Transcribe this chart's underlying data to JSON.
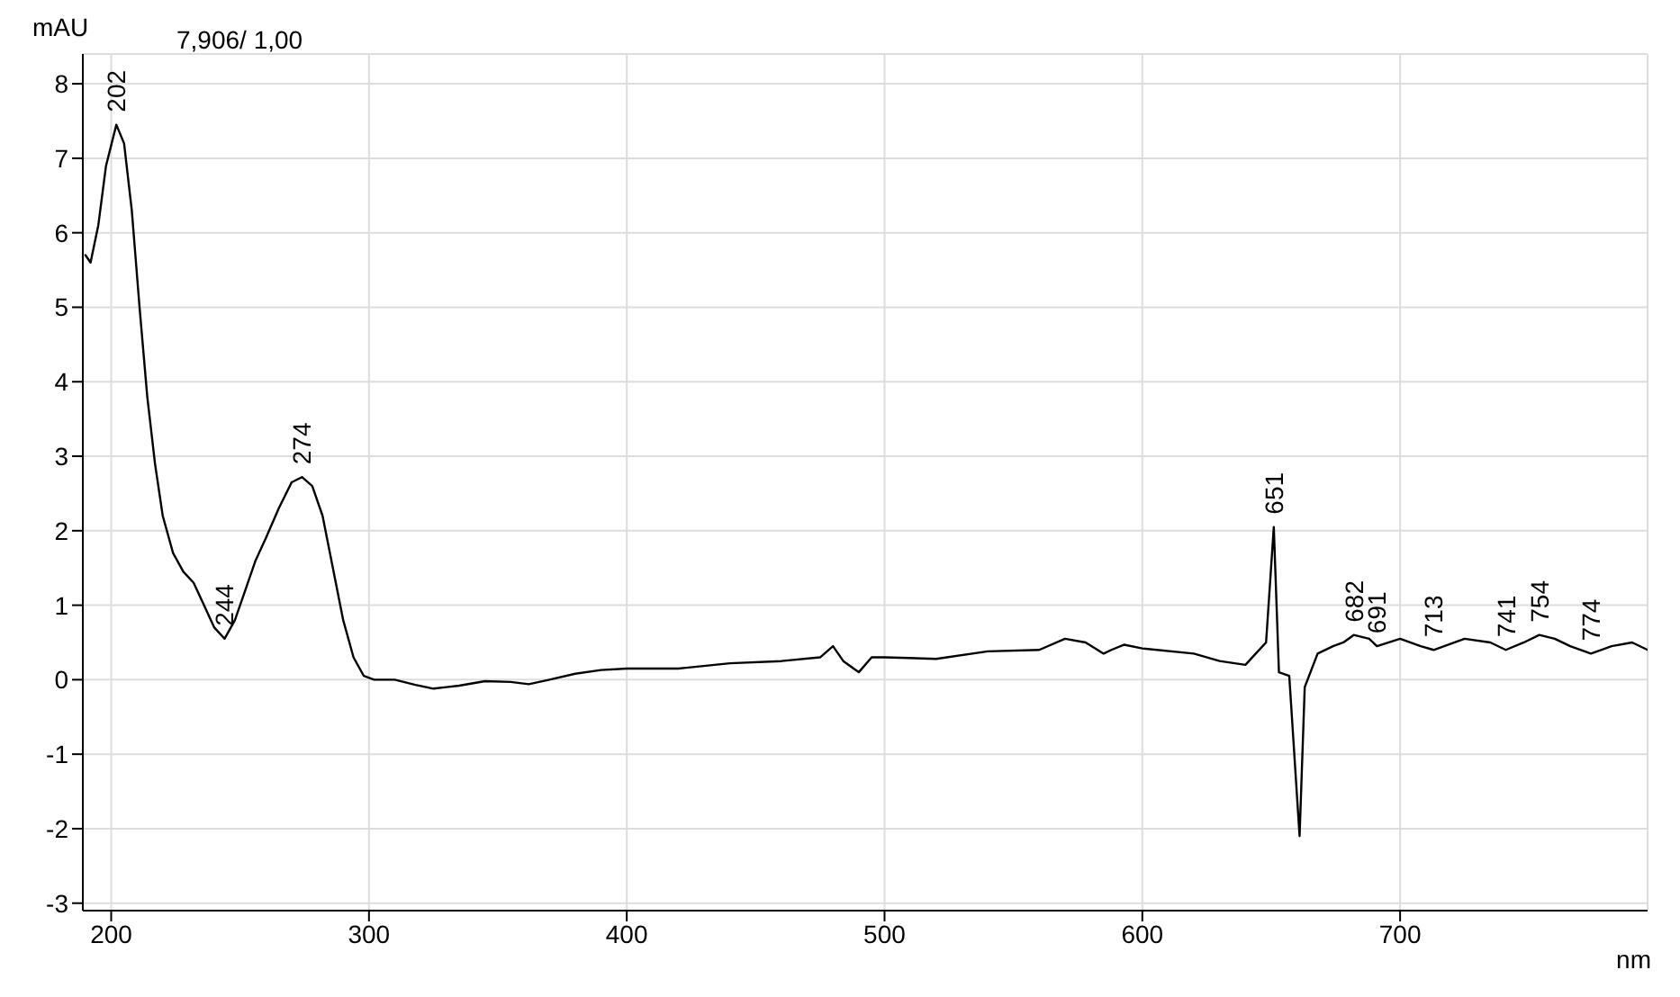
{
  "chart_data": {
    "type": "line",
    "ylabel": "mAU",
    "xlabel": "nm",
    "xlim": [
      189,
      796
    ],
    "ylim": [
      -3.1,
      8.4
    ],
    "xticks": [
      200,
      300,
      400,
      500,
      600,
      700
    ],
    "yticks": [
      -3,
      -2,
      -1,
      0,
      1,
      2,
      3,
      4,
      5,
      6,
      7,
      8
    ],
    "grid": true,
    "marker": "none",
    "line_style": "solid",
    "annotations": [
      "7,906/ 1,00",
      {
        "text": "202",
        "x": 202,
        "y": 7.45
      },
      {
        "text": "244",
        "x": 244,
        "y": 0.55
      },
      {
        "text": "274",
        "x": 274,
        "y": 2.72
      },
      {
        "text": "651",
        "x": 651,
        "y": 2.05
      },
      {
        "text": "682",
        "x": 682,
        "y": 0.6
      },
      {
        "text": "691",
        "x": 691,
        "y": 0.45
      },
      {
        "text": "713",
        "x": 713,
        "y": 0.4
      },
      {
        "text": "741",
        "x": 741,
        "y": 0.4
      },
      {
        "text": "754",
        "x": 754,
        "y": 0.6
      },
      {
        "text": "774",
        "x": 774,
        "y": 0.35
      }
    ],
    "series": [
      {
        "color": "#000000",
        "x": [
          190,
          192,
          195,
          198,
          202,
          205,
          208,
          211,
          214,
          217,
          220,
          224,
          228,
          232,
          236,
          240,
          244,
          248,
          252,
          256,
          260,
          265,
          270,
          274,
          278,
          282,
          286,
          290,
          294,
          298,
          302,
          310,
          318,
          325,
          330,
          335,
          345,
          355,
          362,
          370,
          380,
          390,
          400,
          420,
          440,
          460,
          475,
          480,
          484,
          490,
          495,
          500,
          520,
          540,
          560,
          570,
          578,
          585,
          588,
          593,
          600,
          620,
          630,
          640,
          644,
          648,
          651,
          653,
          657,
          661,
          663,
          668,
          674,
          678,
          682,
          688,
          691,
          700,
          708,
          713,
          725,
          735,
          741,
          748,
          754,
          760,
          766,
          774,
          782,
          790,
          796
        ],
        "values": [
          5.7,
          5.6,
          6.1,
          6.9,
          7.45,
          7.2,
          6.3,
          5.0,
          3.8,
          2.9,
          2.2,
          1.7,
          1.45,
          1.3,
          1.0,
          0.7,
          0.55,
          0.8,
          1.2,
          1.6,
          1.9,
          2.3,
          2.65,
          2.72,
          2.6,
          2.2,
          1.5,
          0.8,
          0.3,
          0.05,
          0.0,
          0.0,
          -0.07,
          -0.12,
          -0.1,
          -0.08,
          -0.02,
          -0.03,
          -0.06,
          0.0,
          0.08,
          0.13,
          0.15,
          0.15,
          0.22,
          0.25,
          0.3,
          0.45,
          0.25,
          0.1,
          0.3,
          0.3,
          0.28,
          0.38,
          0.4,
          0.55,
          0.5,
          0.35,
          0.4,
          0.47,
          0.42,
          0.35,
          0.25,
          0.2,
          0.35,
          0.5,
          2.05,
          0.1,
          0.05,
          -2.1,
          -0.1,
          0.35,
          0.45,
          0.5,
          0.6,
          0.55,
          0.45,
          0.55,
          0.45,
          0.4,
          0.55,
          0.5,
          0.4,
          0.5,
          0.6,
          0.55,
          0.45,
          0.35,
          0.45,
          0.5,
          0.4
        ]
      }
    ]
  }
}
